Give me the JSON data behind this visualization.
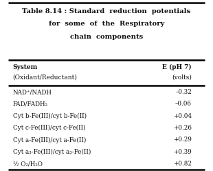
{
  "title_line1": "Table 8.14 : Standard  reduction  potentials",
  "title_line2": "for  some  of  the  Respiratory",
  "title_line3": "chain  components",
  "col1_header_line1": "System",
  "col1_header_line2": "(Oxidant/Reductant)",
  "col2_header_line1": "E (pH 7)",
  "col2_header_line2": "(volts)",
  "rows": [
    [
      "NAD⁺/NADH",
      "–0.32"
    ],
    [
      "FAD/FADH₂",
      "–0.06"
    ],
    [
      "Cyt b-Fe(III)/cyt b-Fe(II)",
      "+0.04"
    ],
    [
      "Cyt c-Fe(III)/cyt c-Fe(II)",
      "+0.26"
    ],
    [
      "Cyt a-Fe(III)/cyt a-Fe(II)",
      "+0.29"
    ],
    [
      "Cyt a₃-Fe(III)/cyt a₃-Fe(II)",
      "+0.39"
    ],
    [
      "½ O₂/H₂O",
      "+0.82"
    ]
  ],
  "bg_color": "#ffffff",
  "text_color": "#111111",
  "fig_width": 3.1,
  "fig_height": 2.48,
  "dpi": 100
}
